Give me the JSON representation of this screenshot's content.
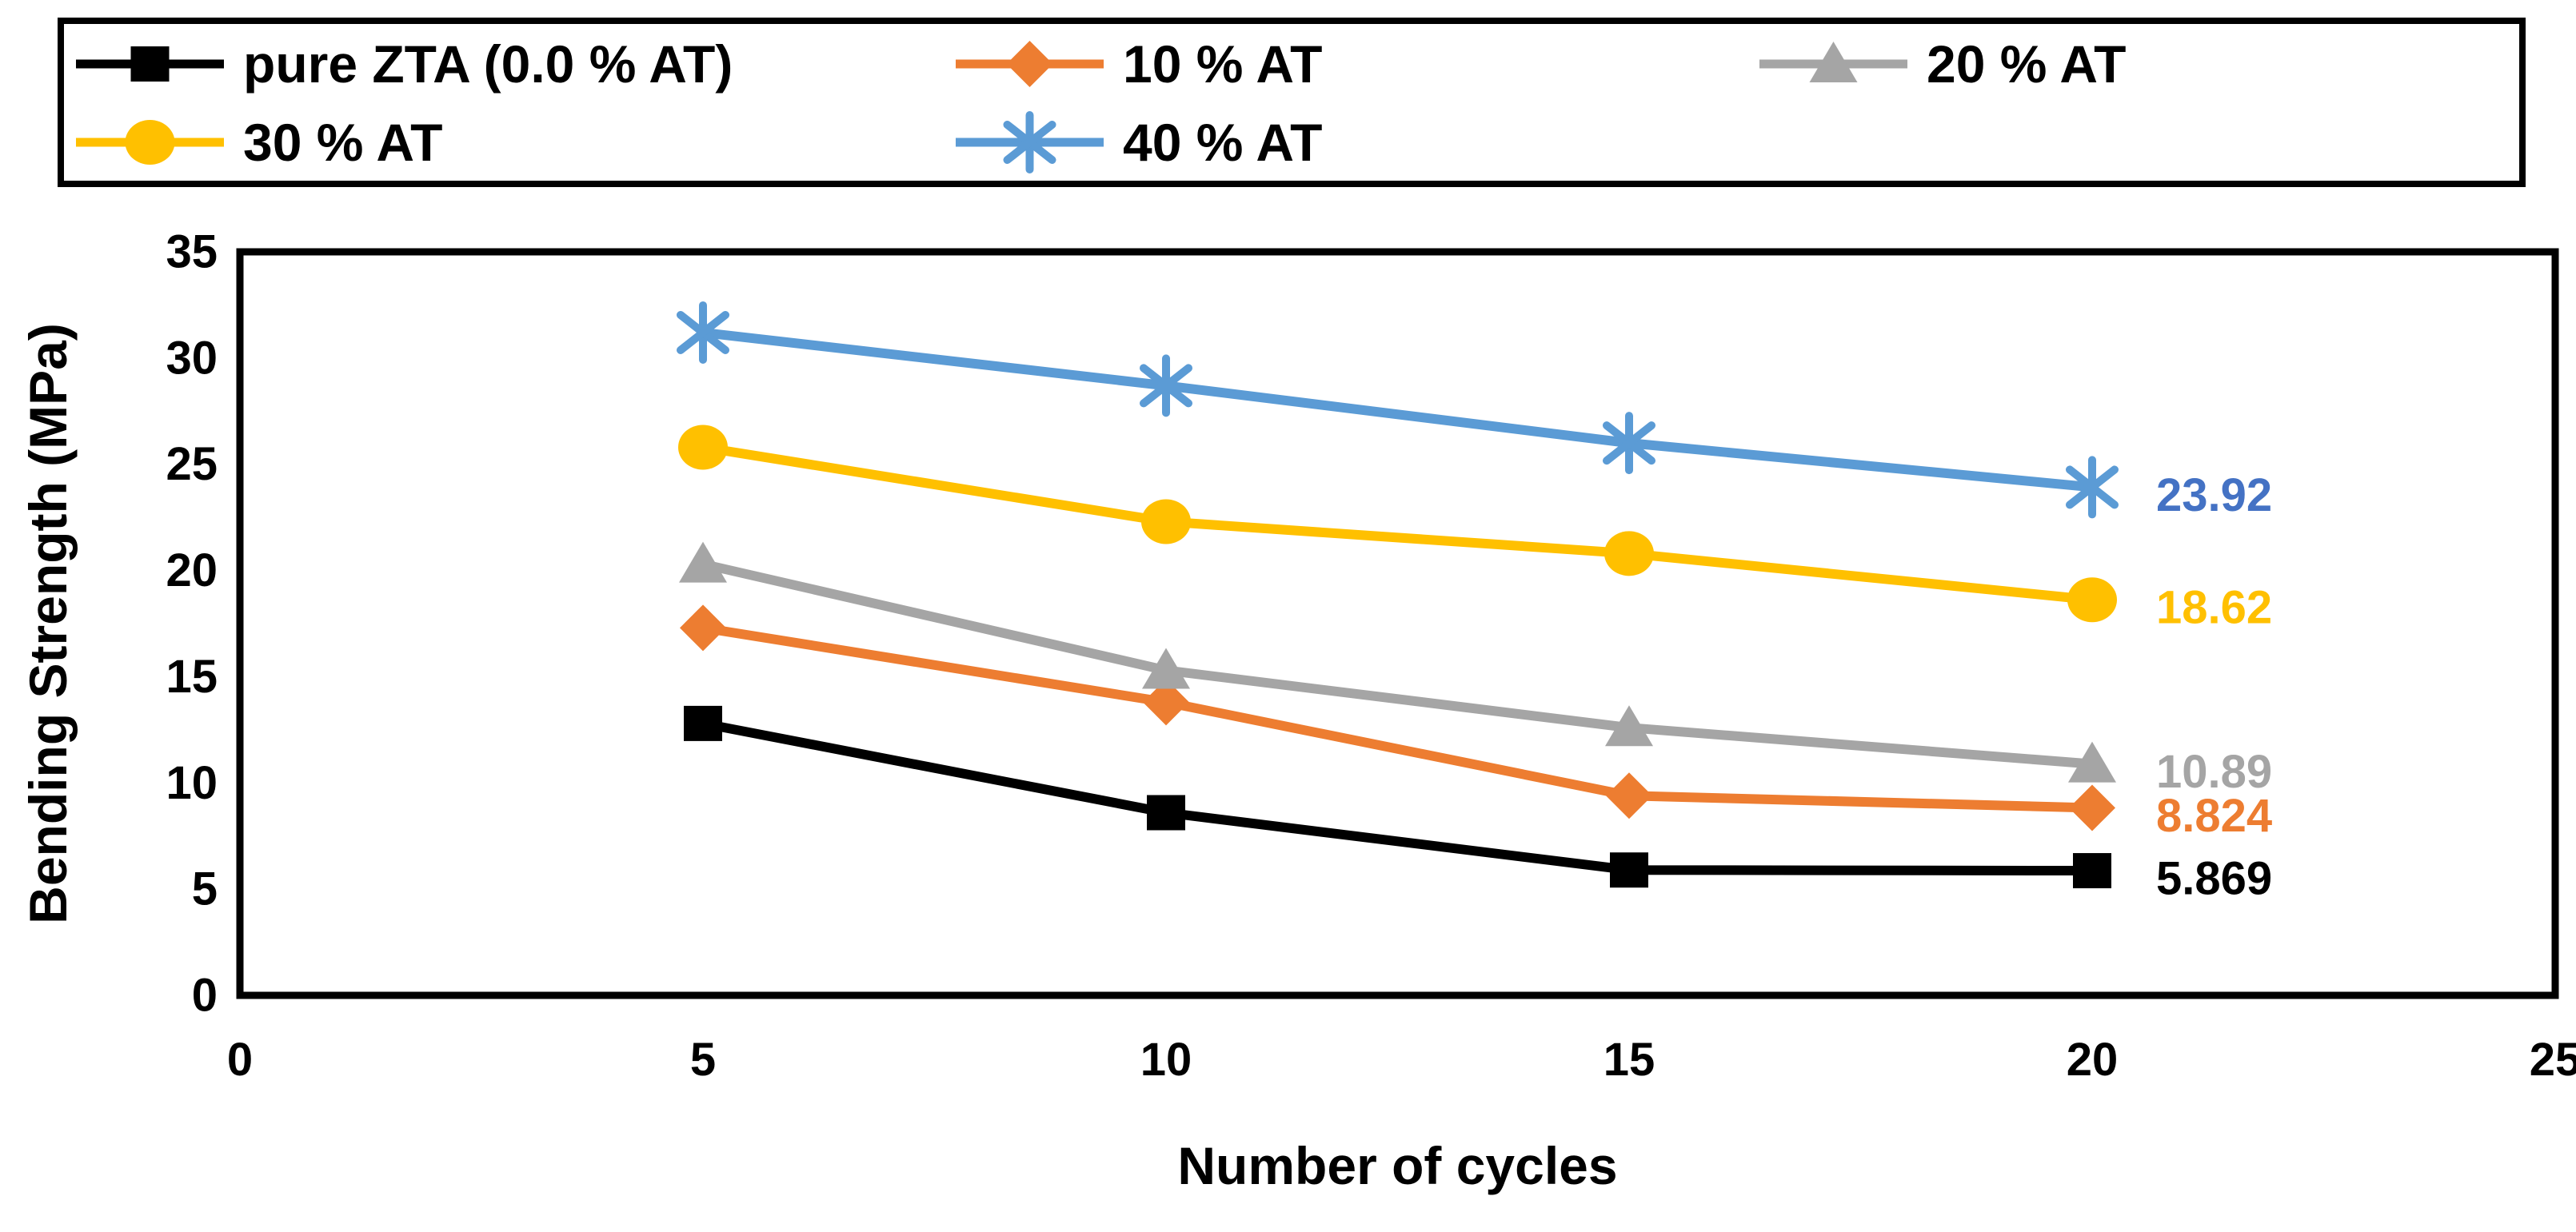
{
  "chart_data": {
    "type": "line",
    "x": [
      5,
      10,
      15,
      20
    ],
    "xlabel": "Number of cycles",
    "ylabel": "Bending Strength (MPa)",
    "xlim": [
      0,
      25
    ],
    "ylim": [
      0,
      35
    ],
    "xticks": [
      0,
      5,
      10,
      15,
      20,
      25
    ],
    "yticks": [
      0,
      5,
      10,
      15,
      20,
      25,
      30,
      35
    ],
    "grid": false,
    "legend_position": "top",
    "series": [
      {
        "name": "pure ZTA (0.0 % AT)",
        "marker": "square-marker-icon",
        "color": "#000000",
        "label_color": "#000000",
        "values": [
          12.8,
          8.6,
          5.9,
          5.869
        ],
        "end_label": "5.869"
      },
      {
        "name": "10 % AT",
        "marker": "diamond-marker-icon",
        "color": "#ED7D31",
        "label_color": "#ED7D31",
        "values": [
          17.3,
          13.8,
          9.4,
          8.824
        ],
        "end_label": "8.824"
      },
      {
        "name": "20 % AT",
        "marker": "triangle-marker-icon",
        "color": "#A5A5A5",
        "label_color": "#A5A5A5",
        "values": [
          20.3,
          15.3,
          12.6,
          10.89
        ],
        "end_label": "10.89"
      },
      {
        "name": "30 % AT",
        "marker": "circle-marker-icon",
        "color": "#FFC000",
        "label_color": "#FFC000",
        "values": [
          25.8,
          22.3,
          20.8,
          18.62
        ],
        "end_label": "18.62"
      },
      {
        "name": "40 % AT",
        "marker": "asterisk-marker-icon",
        "color": "#5B9BD5",
        "label_color": "#4472C4",
        "values": [
          31.2,
          28.7,
          26.0,
          23.92
        ],
        "end_label": "23.92"
      }
    ]
  }
}
